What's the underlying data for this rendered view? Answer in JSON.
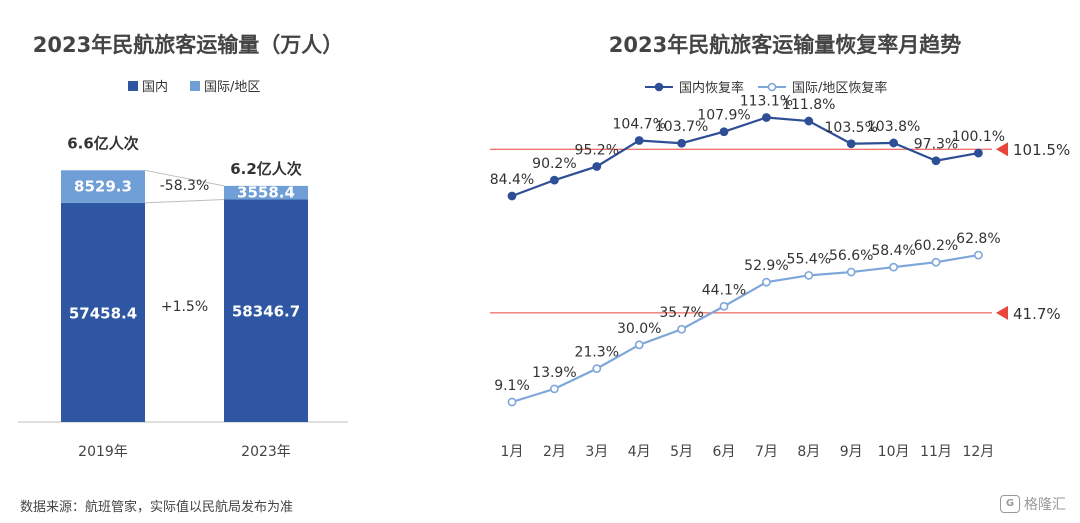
{
  "chart_data": [
    {
      "type": "bar",
      "stacked": true,
      "title": "2023年民航旅客运输量（万人）",
      "categories": [
        "2019年",
        "2023年"
      ],
      "series": [
        {
          "name": "国内",
          "values": [
            57458.4,
            58346.7
          ],
          "color": "#2e56a3"
        },
        {
          "name": "国际/地区",
          "values": [
            8529.3,
            3558.4
          ],
          "color": "#6f9fd6"
        }
      ],
      "totals_labels": [
        "6.6亿人次",
        "6.2亿人次"
      ],
      "change_labels": {
        "国际/地区": "-58.3%",
        "国内": "+1.5%"
      },
      "legend": "top",
      "grid": false
    },
    {
      "type": "line",
      "title": "2023年民航旅客运输量恢复率月趋势",
      "x": [
        "1月",
        "2月",
        "3月",
        "4月",
        "5月",
        "6月",
        "7月",
        "8月",
        "9月",
        "10月",
        "11月",
        "12月"
      ],
      "series": [
        {
          "name": "国内恢复率",
          "values": [
            84.4,
            90.2,
            95.2,
            104.7,
            103.7,
            107.9,
            113.1,
            111.8,
            103.5,
            103.8,
            97.3,
            100.1
          ],
          "color": "#2e4f96",
          "marker": "filled"
        },
        {
          "name": "国际/地区恢复率",
          "values": [
            9.1,
            13.9,
            21.3,
            30.0,
            35.7,
            44.1,
            52.9,
            55.4,
            56.6,
            58.4,
            60.2,
            62.8
          ],
          "color": "#7ea6da",
          "marker": "hollow"
        }
      ],
      "reference_lines": [
        {
          "value": 101.5,
          "label": "101.5%",
          "color": "#e8453c"
        },
        {
          "value": 41.7,
          "label": "41.7%",
          "color": "#e8453c"
        }
      ],
      "value_suffix": "%",
      "legend": "top",
      "grid": false
    }
  ],
  "footer": {
    "source": "数据来源：航班管家，实际值以民航局发布为准",
    "watermark": "格隆汇",
    "watermark_icon": "G"
  }
}
